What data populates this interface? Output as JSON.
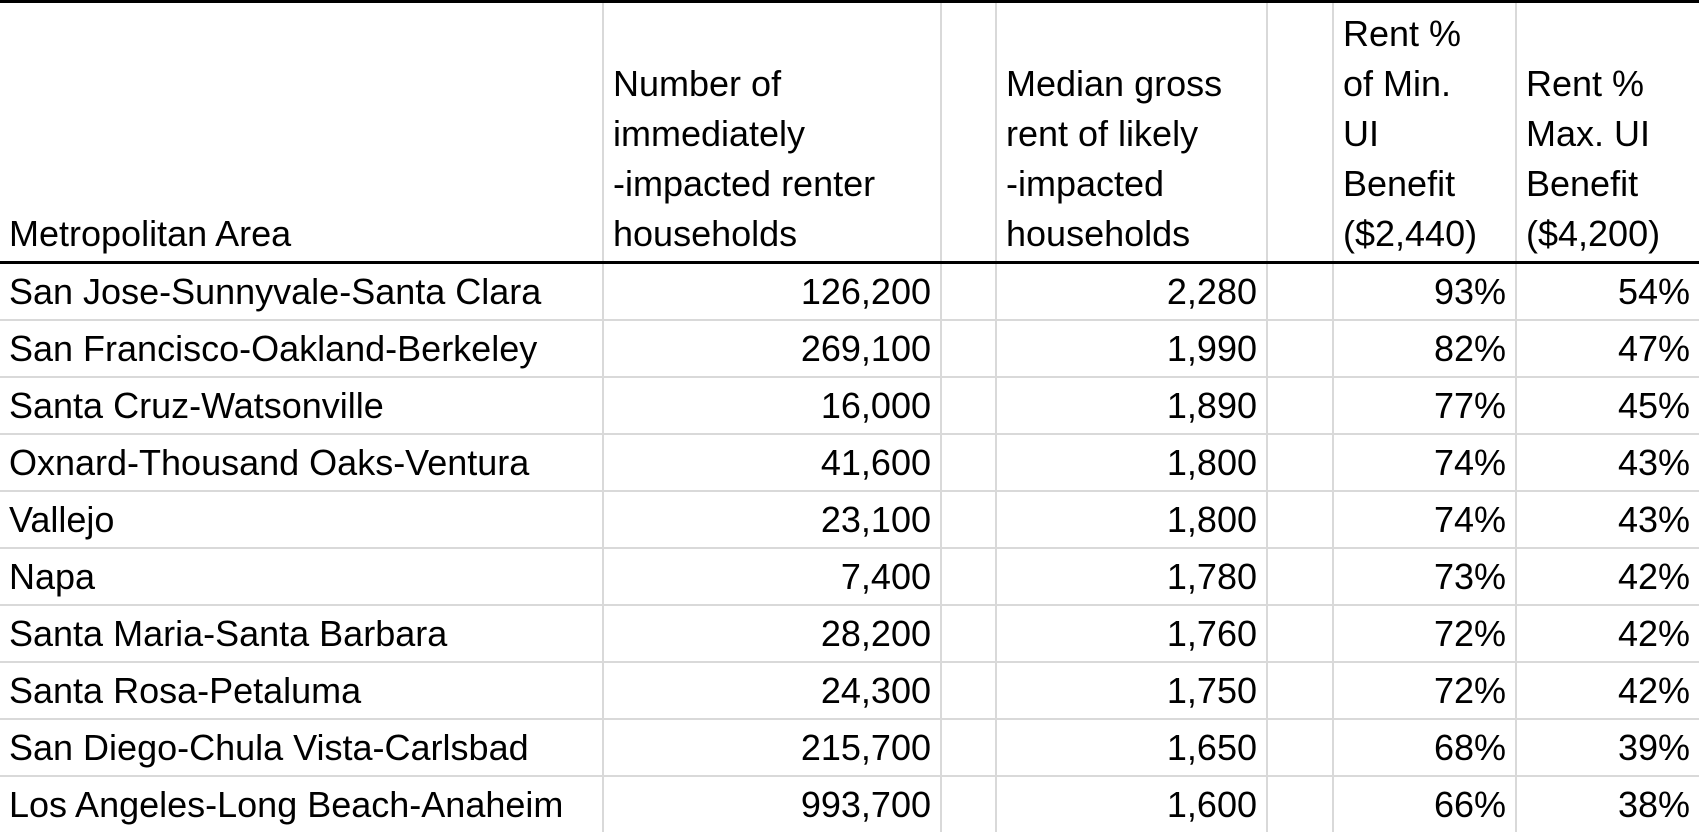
{
  "table": {
    "headers": {
      "metro": "Metropolitan Area",
      "households": " Number of\nimmediately\n-impacted renter\nhouseholds",
      "rent": " Median gross\nrent of likely\n-impacted\nhouseholds",
      "min_pct": "Rent %\nof Min.\nUI\nBenefit\n($2,440)",
      "max_pct": "Rent %\nMax. UI\nBenefit\n($4,200)"
    },
    "rows": [
      {
        "metro": "San Jose-Sunnyvale-Santa Clara",
        "households": "126,200",
        "rent": "2,280",
        "min_pct": "93%",
        "max_pct": "54%"
      },
      {
        "metro": "San Francisco-Oakland-Berkeley",
        "households": "269,100",
        "rent": "1,990",
        "min_pct": "82%",
        "max_pct": "47%"
      },
      {
        "metro": "Santa Cruz-Watsonville",
        "households": "16,000",
        "rent": "1,890",
        "min_pct": "77%",
        "max_pct": "45%"
      },
      {
        "metro": "Oxnard-Thousand Oaks-Ventura",
        "households": "41,600",
        "rent": "1,800",
        "min_pct": "74%",
        "max_pct": "43%"
      },
      {
        "metro": "Vallejo",
        "households": "23,100",
        "rent": "1,800",
        "min_pct": "74%",
        "max_pct": "43%"
      },
      {
        "metro": "Napa",
        "households": "7,400",
        "rent": "1,780",
        "min_pct": "73%",
        "max_pct": "42%"
      },
      {
        "metro": "Santa Maria-Santa Barbara",
        "households": "28,200",
        "rent": "1,760",
        "min_pct": "72%",
        "max_pct": "42%"
      },
      {
        "metro": "Santa Rosa-Petaluma",
        "households": "24,300",
        "rent": "1,750",
        "min_pct": "72%",
        "max_pct": "42%"
      },
      {
        "metro": "San Diego-Chula Vista-Carlsbad",
        "households": "215,700",
        "rent": "1,650",
        "min_pct": "68%",
        "max_pct": "39%"
      },
      {
        "metro": "Los Angeles-Long Beach-Anaheim",
        "households": "993,700",
        "rent": "1,600",
        "min_pct": "66%",
        "max_pct": "38%"
      }
    ]
  }
}
